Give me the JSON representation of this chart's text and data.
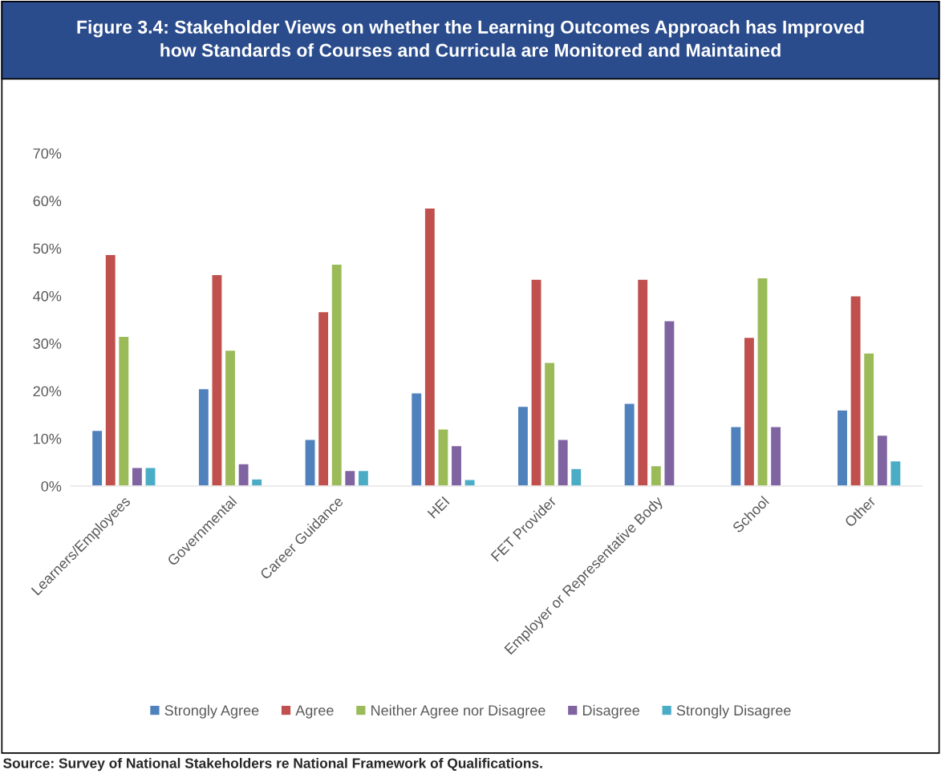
{
  "chart_data": {
    "type": "bar",
    "title": "Figure 3.4: Stakeholder Views on whether the Learning Outcomes Approach has Improved\nhow Standards of Courses and Curricula are Monitored and Maintained",
    "categories": [
      "Learners/Employees",
      "Governmental",
      "Career Guidance",
      "HEI",
      "FET Provider",
      "Employer or Representative Body",
      "School",
      "Other"
    ],
    "series": [
      {
        "name": "Strongly Agree",
        "color": "#4f81bd",
        "values": [
          11.7,
          20.5,
          9.8,
          19.6,
          16.8,
          17.4,
          12.5,
          16.0
        ]
      },
      {
        "name": "Agree",
        "color": "#c0504d",
        "values": [
          48.7,
          44.5,
          36.7,
          58.5,
          43.5,
          43.5,
          31.3,
          40.0
        ]
      },
      {
        "name": "Neither Agree nor Disagree",
        "color": "#9bbb59",
        "values": [
          31.5,
          28.6,
          46.7,
          12.0,
          26.0,
          4.3,
          43.8,
          28.0
        ]
      },
      {
        "name": "Disagree",
        "color": "#8064a2",
        "values": [
          3.9,
          4.7,
          3.3,
          8.5,
          9.8,
          34.8,
          12.5,
          10.7
        ]
      },
      {
        "name": "Strongly Disagree",
        "color": "#4bacc6",
        "values": [
          3.9,
          1.5,
          3.3,
          1.4,
          3.7,
          null,
          null,
          5.3
        ]
      }
    ],
    "ylim": [
      0,
      70
    ],
    "yticks": [
      {
        "value": 0,
        "label": "0%"
      },
      {
        "value": 10,
        "label": "10%"
      },
      {
        "value": 20,
        "label": "20%"
      },
      {
        "value": 30,
        "label": "30%"
      },
      {
        "value": 40,
        "label": "40%"
      },
      {
        "value": 50,
        "label": "50%"
      },
      {
        "value": 60,
        "label": "60%"
      },
      {
        "value": 70,
        "label": "70%"
      }
    ],
    "grid": false,
    "legend": "bottom",
    "annotations": [
      "Source: Survey of National Stakeholders re National Framework of Qualifications."
    ]
  }
}
